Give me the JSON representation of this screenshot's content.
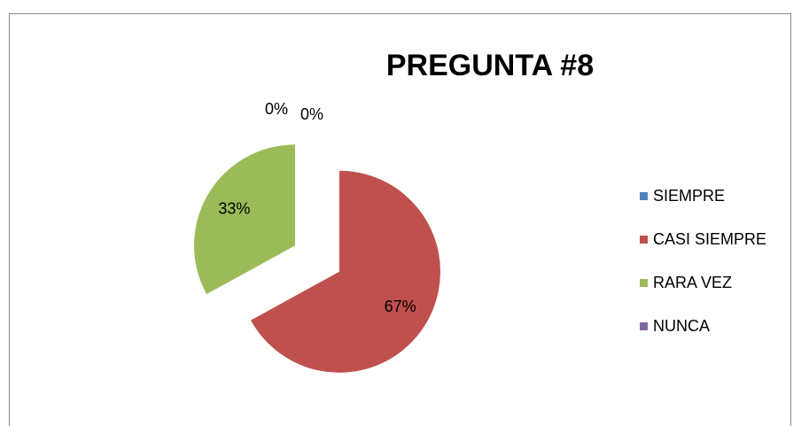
{
  "chart_data": {
    "type": "pie",
    "title": "PREGUNTA #8",
    "categories": [
      "SIEMPRE",
      "CASI SIEMPRE",
      "RARA VEZ",
      "NUNCA"
    ],
    "values": [
      0,
      67,
      33,
      0
    ],
    "value_labels": [
      "0%",
      "67%",
      "33%",
      "0%"
    ],
    "colors": [
      "#4f81bd",
      "#c0504d",
      "#9bbb59",
      "#8064a2"
    ],
    "exploded": true,
    "legend": "right"
  }
}
